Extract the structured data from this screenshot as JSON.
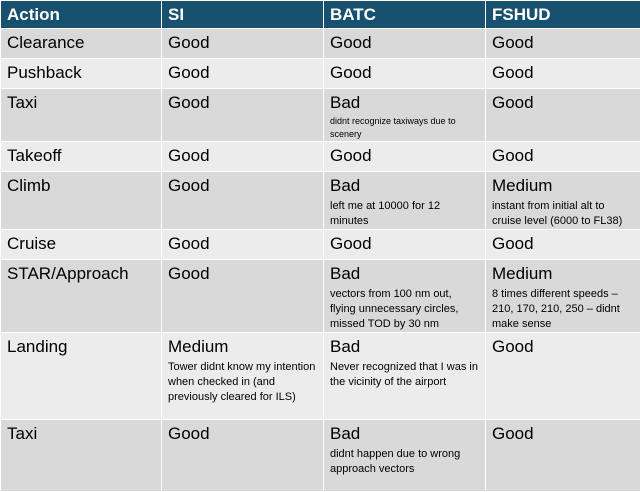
{
  "headers": [
    "Action",
    "SI",
    "BATC",
    "FSHUD"
  ],
  "rows": [
    {
      "action": "Clearance",
      "si": {
        "rating": "Good",
        "note": ""
      },
      "batc": {
        "rating": "Good",
        "note": ""
      },
      "fshud": {
        "rating": "Good",
        "note": ""
      }
    },
    {
      "action": "Pushback",
      "si": {
        "rating": "Good",
        "note": ""
      },
      "batc": {
        "rating": "Good",
        "note": ""
      },
      "fshud": {
        "rating": "Good",
        "note": ""
      }
    },
    {
      "action": "Taxi",
      "si": {
        "rating": "Good",
        "note": ""
      },
      "batc": {
        "rating": "Bad",
        "note": "didnt recognize taxiways due to scenery"
      },
      "fshud": {
        "rating": "Good",
        "note": ""
      }
    },
    {
      "action": "Takeoff",
      "si": {
        "rating": "Good",
        "note": ""
      },
      "batc": {
        "rating": "Good",
        "note": ""
      },
      "fshud": {
        "rating": "Good",
        "note": ""
      }
    },
    {
      "action": "Climb",
      "si": {
        "rating": "Good",
        "note": ""
      },
      "batc": {
        "rating": "Bad",
        "note": "left me at 10000 for 12 minutes"
      },
      "fshud": {
        "rating": "Medium",
        "note": "instant from initial alt to cruise level (6000 to FL38)"
      }
    },
    {
      "action": "Cruise",
      "si": {
        "rating": "Good",
        "note": ""
      },
      "batc": {
        "rating": "Good",
        "note": ""
      },
      "fshud": {
        "rating": "Good",
        "note": ""
      }
    },
    {
      "action": "STAR/Approach",
      "si": {
        "rating": "Good",
        "note": ""
      },
      "batc": {
        "rating": "Bad",
        "note": "vectors from 100 nm out, flying unnecessary circles, missed TOD by 30 nm"
      },
      "fshud": {
        "rating": "Medium",
        "note": "8 times different speeds – 210, 170, 210, 250 – didnt make sense"
      }
    },
    {
      "action": "Landing",
      "si": {
        "rating": "Medium",
        "note": "Tower didnt know my intention when checked in (and previously cleared for ILS)"
      },
      "batc": {
        "rating": "Bad",
        "note": "Never recognized that I was in the vicinity of the airport"
      },
      "fshud": {
        "rating": "Good",
        "note": ""
      }
    },
    {
      "action": "Taxi",
      "si": {
        "rating": "Good",
        "note": ""
      },
      "batc": {
        "rating": "Bad",
        "note": "didnt happen due to wrong approach vectors"
      },
      "fshud": {
        "rating": "Good",
        "note": ""
      }
    }
  ]
}
